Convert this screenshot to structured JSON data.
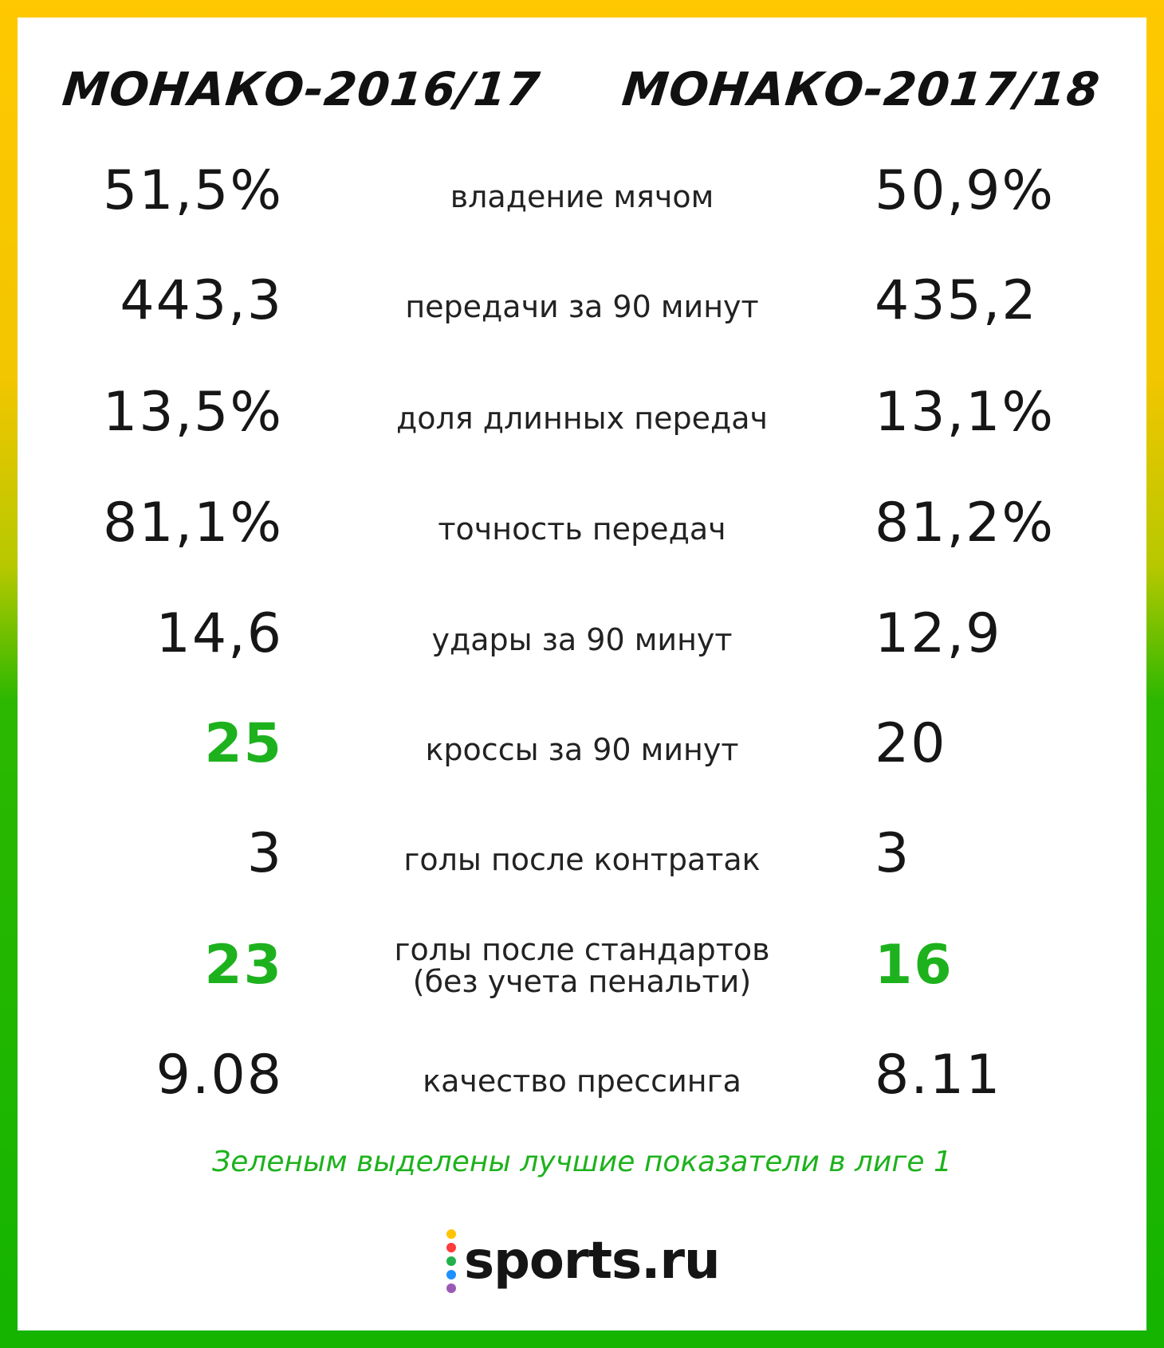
{
  "header": {
    "left_title": "МОНАКО-2016/17",
    "right_title": "МОНАКО-2017/18"
  },
  "rows": [
    {
      "left": "51,5%",
      "label": "владение мячом",
      "right": "50,9%",
      "left_best": false,
      "right_best": false
    },
    {
      "left": "443,3",
      "label": "передачи за 90 минут",
      "right": "435,2",
      "left_best": false,
      "right_best": false
    },
    {
      "left": "13,5%",
      "label": "доля длинных передач",
      "right": "13,1%",
      "left_best": false,
      "right_best": false
    },
    {
      "left": "81,1%",
      "label": "точность передач",
      "right": "81,2%",
      "left_best": false,
      "right_best": false
    },
    {
      "left": "14,6",
      "label": "удары за 90 минут",
      "right": "12,9",
      "left_best": false,
      "right_best": false
    },
    {
      "left": "25",
      "label": "кроссы за 90 минут",
      "right": "20",
      "left_best": true,
      "right_best": false
    },
    {
      "left": "3",
      "label": "голы после контратак",
      "right": "3",
      "left_best": false,
      "right_best": false
    },
    {
      "left": "23",
      "label": "голы после стандартов",
      "label2": "(без учета пенальти)",
      "right": "16",
      "left_best": true,
      "right_best": true
    },
    {
      "left": "9.08",
      "label": "качество прессинга",
      "right": "8.11",
      "left_best": false,
      "right_best": false
    }
  ],
  "note": "Зеленым выделены лучшие показатели в лиге 1",
  "logo": {
    "text": "sports.ru",
    "dot_colors": [
      "#ffc400",
      "#ff3b3b",
      "#22b14c",
      "#1e90ff",
      "#9b59b6"
    ]
  },
  "colors": {
    "best": "#1db21d",
    "frame_top": "#ffc800",
    "frame_bottom": "#14b400"
  }
}
